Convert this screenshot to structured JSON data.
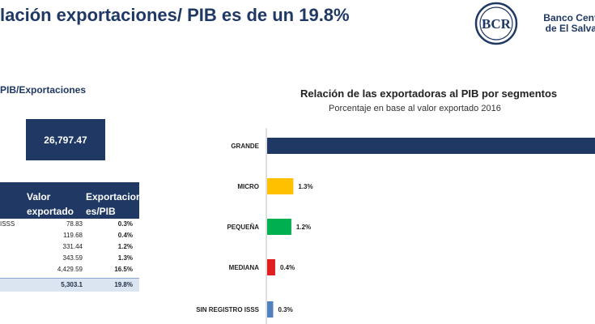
{
  "slide": {
    "title": "lación exportaciones/ PIB es de un 19.8%"
  },
  "logo": {
    "seal_text": "BCR",
    "line1": "Banco Central de",
    "line2": "de El Salva"
  },
  "left_panel": {
    "section_label": "PIB/Exportaciones",
    "pib_value": "26,797.47",
    "table": {
      "col1_line1": "Valor",
      "col1_line2": "exportado",
      "col2_line1": "Exportacion",
      "col2_line2": "es/PIB",
      "rows": [
        {
          "name": "ISSS",
          "value": "78.83",
          "pct": "0.3%"
        },
        {
          "name": "",
          "value": "119.68",
          "pct": "0.4%"
        },
        {
          "name": "",
          "value": "331.44",
          "pct": "1.2%"
        },
        {
          "name": "",
          "value": "343.59",
          "pct": "1.3%"
        },
        {
          "name": "",
          "value": "4,429.59",
          "pct": "16.5%"
        }
      ],
      "total_value": "5,303.1",
      "total_pct": "19.8%"
    }
  },
  "chart_data": {
    "type": "bar",
    "orientation": "horizontal",
    "title": "Relación de las exportadoras al PIB por segmentos",
    "subtitle": "Porcentaje en base al valor exportado 2016",
    "categories": [
      "GRANDE",
      "MICRO",
      "PEQUEÑA",
      "MEDIANA",
      "SIN REGISTRO ISSS"
    ],
    "values": [
      16.5,
      1.3,
      1.2,
      0.4,
      0.3
    ],
    "data_labels": [
      "",
      "1.3%",
      "1.2%",
      "0.4%",
      "0.3%"
    ],
    "colors": [
      "#1f3864",
      "#ffc000",
      "#00b050",
      "#e02020",
      "#4f81bd"
    ],
    "xlim": [
      0,
      16.5
    ],
    "grid": false,
    "legend": "none"
  }
}
